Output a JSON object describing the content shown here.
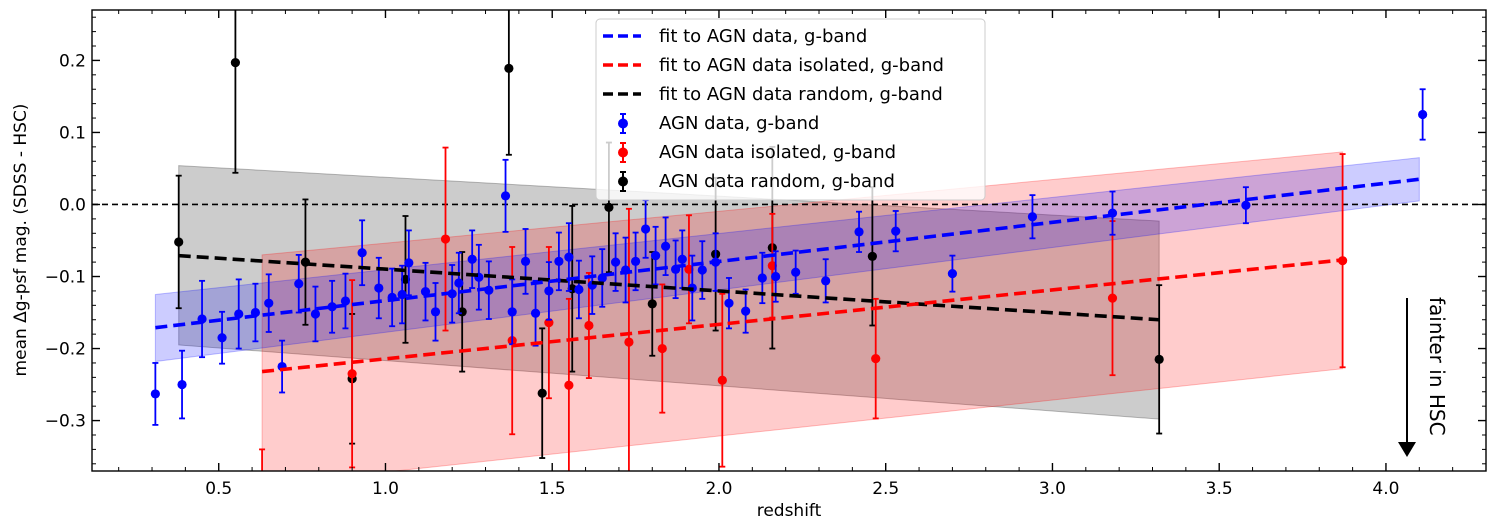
{
  "chart_data": {
    "type": "scatter",
    "title": "",
    "xlabel": "redshift",
    "ylabel": "mean Δg-psf mag. (SDSS - HSC)",
    "xlim": [
      0.12,
      4.3
    ],
    "ylim": [
      -0.37,
      0.27
    ],
    "xticks": [
      0.5,
      1.0,
      1.5,
      2.0,
      2.5,
      3.0,
      3.5,
      4.0
    ],
    "xtick_labels": [
      "0.5",
      "1.0",
      "1.5",
      "2.0",
      "2.5",
      "3.0",
      "3.5",
      "4.0"
    ],
    "yticks": [
      -0.3,
      -0.2,
      -0.1,
      0.0,
      0.1,
      0.2
    ],
    "ytick_labels": [
      "−0.3",
      "−0.2",
      "−0.1",
      "0.0",
      "0.1",
      "0.2"
    ],
    "reference_line_y": 0.0,
    "annotation": "fainter in HSC",
    "legend": [
      {
        "label": "fit to AGN data, g-band",
        "kind": "line",
        "color": "#0000ff"
      },
      {
        "label": "fit to AGN data isolated, g-band",
        "kind": "line",
        "color": "#ff0000"
      },
      {
        "label": "fit to AGN data random, g-band",
        "kind": "line",
        "color": "#000000"
      },
      {
        "label": "AGN data, g-band",
        "kind": "point",
        "color": "#0000ff"
      },
      {
        "label": "AGN data isolated, g-band",
        "kind": "point",
        "color": "#ff0000"
      },
      {
        "label": "AGN data random, g-band",
        "kind": "point",
        "color": "#000000"
      }
    ],
    "series": [
      {
        "name": "AGN data random, g-band",
        "color": "#000000",
        "band_color": "rgba(0,0,0,0.2)",
        "fit": {
          "x": [
            0.38,
            3.32
          ],
          "y": [
            -0.071,
            -0.16
          ]
        },
        "band": {
          "x": [
            0.38,
            3.32
          ],
          "upper": [
            0.054,
            -0.023
          ],
          "lower": [
            -0.195,
            -0.298
          ]
        },
        "points": [
          {
            "x": 0.38,
            "y": -0.052,
            "err": 0.092
          },
          {
            "x": 0.55,
            "y": 0.197,
            "err": 0.153
          },
          {
            "x": 0.76,
            "y": -0.08,
            "err": 0.087
          },
          {
            "x": 0.9,
            "y": -0.242,
            "err": 0.09
          },
          {
            "x": 1.06,
            "y": -0.104,
            "err": 0.088
          },
          {
            "x": 1.23,
            "y": -0.149,
            "err": 0.083
          },
          {
            "x": 1.37,
            "y": 0.189,
            "err": 0.12
          },
          {
            "x": 1.47,
            "y": -0.262,
            "err": 0.09
          },
          {
            "x": 1.56,
            "y": -0.117,
            "err": 0.115
          },
          {
            "x": 1.67,
            "y": -0.004,
            "err": 0.09
          },
          {
            "x": 1.8,
            "y": -0.138,
            "err": 0.072
          },
          {
            "x": 1.99,
            "y": -0.069,
            "err": 0.106
          },
          {
            "x": 2.16,
            "y": -0.06,
            "err": 0.14
          },
          {
            "x": 2.46,
            "y": -0.072,
            "err": 0.096
          },
          {
            "x": 3.32,
            "y": -0.215,
            "err": 0.103
          }
        ]
      },
      {
        "name": "AGN data isolated, g-band",
        "color": "#ff0000",
        "band_color": "rgba(255,0,0,0.2)",
        "fit": {
          "x": [
            0.63,
            3.87
          ],
          "y": [
            -0.232,
            -0.077
          ]
        },
        "band": {
          "x": [
            0.63,
            3.87
          ],
          "upper": [
            -0.07,
            0.073
          ],
          "lower": [
            -0.39,
            -0.228
          ]
        },
        "points": [
          {
            "x": 0.63,
            "y": -0.39,
            "err": 0.05
          },
          {
            "x": 0.9,
            "y": -0.235,
            "err": 0.13
          },
          {
            "x": 1.18,
            "y": -0.048,
            "err": 0.127
          },
          {
            "x": 1.38,
            "y": -0.189,
            "err": 0.13
          },
          {
            "x": 1.49,
            "y": -0.164,
            "err": 0.105
          },
          {
            "x": 1.55,
            "y": -0.251,
            "err": 0.12
          },
          {
            "x": 1.61,
            "y": -0.168,
            "err": 0.073
          },
          {
            "x": 1.73,
            "y": -0.191,
            "err": 0.185
          },
          {
            "x": 1.83,
            "y": -0.2,
            "err": 0.089
          },
          {
            "x": 1.91,
            "y": -0.09,
            "err": 0.075
          },
          {
            "x": 2.01,
            "y": -0.244,
            "err": 0.12
          },
          {
            "x": 2.16,
            "y": -0.085,
            "err": 0.072
          },
          {
            "x": 2.47,
            "y": -0.214,
            "err": 0.083
          },
          {
            "x": 3.18,
            "y": -0.13,
            "err": 0.107
          },
          {
            "x": 3.87,
            "y": -0.078,
            "err": 0.148
          }
        ]
      },
      {
        "name": "AGN data, g-band",
        "color": "#0000ff",
        "band_color": "rgba(0,0,255,0.2)",
        "fit": {
          "x": [
            0.31,
            4.1
          ],
          "y": [
            -0.171,
            0.035
          ]
        },
        "band": {
          "x": [
            0.31,
            4.1
          ],
          "upper": [
            -0.125,
            0.065
          ],
          "lower": [
            -0.218,
            0.005
          ]
        },
        "points": [
          {
            "x": 0.31,
            "y": -0.263,
            "err": 0.043
          },
          {
            "x": 0.39,
            "y": -0.25,
            "err": 0.047
          },
          {
            "x": 0.45,
            "y": -0.159,
            "err": 0.053
          },
          {
            "x": 0.51,
            "y": -0.185,
            "err": 0.036
          },
          {
            "x": 0.56,
            "y": -0.152,
            "err": 0.048
          },
          {
            "x": 0.61,
            "y": -0.15,
            "err": 0.04
          },
          {
            "x": 0.65,
            "y": -0.137,
            "err": 0.04
          },
          {
            "x": 0.69,
            "y": -0.225,
            "err": 0.036
          },
          {
            "x": 0.74,
            "y": -0.11,
            "err": 0.04
          },
          {
            "x": 0.79,
            "y": -0.152,
            "err": 0.038
          },
          {
            "x": 0.84,
            "y": -0.142,
            "err": 0.036
          },
          {
            "x": 0.88,
            "y": -0.134,
            "err": 0.038
          },
          {
            "x": 0.93,
            "y": -0.067,
            "err": 0.045
          },
          {
            "x": 0.98,
            "y": -0.116,
            "err": 0.042
          },
          {
            "x": 1.02,
            "y": -0.129,
            "err": 0.04
          },
          {
            "x": 1.05,
            "y": -0.125,
            "err": 0.04
          },
          {
            "x": 1.07,
            "y": -0.081,
            "err": 0.045
          },
          {
            "x": 1.12,
            "y": -0.121,
            "err": 0.04
          },
          {
            "x": 1.15,
            "y": -0.149,
            "err": 0.04
          },
          {
            "x": 1.2,
            "y": -0.124,
            "err": 0.04
          },
          {
            "x": 1.22,
            "y": -0.109,
            "err": 0.042
          },
          {
            "x": 1.26,
            "y": -0.076,
            "err": 0.04
          },
          {
            "x": 1.28,
            "y": -0.101,
            "err": 0.045
          },
          {
            "x": 1.31,
            "y": -0.119,
            "err": 0.04
          },
          {
            "x": 1.36,
            "y": 0.012,
            "err": 0.05
          },
          {
            "x": 1.38,
            "y": -0.149,
            "err": 0.045
          },
          {
            "x": 1.42,
            "y": -0.079,
            "err": 0.045
          },
          {
            "x": 1.45,
            "y": -0.151,
            "err": 0.045
          },
          {
            "x": 1.49,
            "y": -0.12,
            "err": 0.04
          },
          {
            "x": 1.52,
            "y": -0.079,
            "err": 0.04
          },
          {
            "x": 1.55,
            "y": -0.073,
            "err": 0.047
          },
          {
            "x": 1.58,
            "y": -0.118,
            "err": 0.04
          },
          {
            "x": 1.62,
            "y": -0.112,
            "err": 0.04
          },
          {
            "x": 1.65,
            "y": -0.102,
            "err": 0.04
          },
          {
            "x": 1.69,
            "y": -0.08,
            "err": 0.04
          },
          {
            "x": 1.72,
            "y": -0.091,
            "err": 0.045
          },
          {
            "x": 1.75,
            "y": -0.079,
            "err": 0.04
          },
          {
            "x": 1.78,
            "y": -0.034,
            "err": 0.04
          },
          {
            "x": 1.81,
            "y": -0.071,
            "err": 0.04
          },
          {
            "x": 1.84,
            "y": -0.058,
            "err": 0.04
          },
          {
            "x": 1.87,
            "y": -0.09,
            "err": 0.04
          },
          {
            "x": 1.89,
            "y": -0.076,
            "err": 0.04
          },
          {
            "x": 1.92,
            "y": -0.116,
            "err": 0.045
          },
          {
            "x": 1.95,
            "y": -0.091,
            "err": 0.04
          },
          {
            "x": 1.99,
            "y": -0.08,
            "err": 0.04
          },
          {
            "x": 2.03,
            "y": -0.137,
            "err": 0.035
          },
          {
            "x": 2.08,
            "y": -0.148,
            "err": 0.03
          },
          {
            "x": 2.13,
            "y": -0.102,
            "err": 0.035
          },
          {
            "x": 2.17,
            "y": -0.1,
            "err": 0.035
          },
          {
            "x": 2.23,
            "y": -0.094,
            "err": 0.03
          },
          {
            "x": 2.32,
            "y": -0.106,
            "err": 0.03
          },
          {
            "x": 2.42,
            "y": -0.038,
            "err": 0.028
          },
          {
            "x": 2.53,
            "y": -0.037,
            "err": 0.028
          },
          {
            "x": 2.7,
            "y": -0.096,
            "err": 0.025
          },
          {
            "x": 2.94,
            "y": -0.017,
            "err": 0.03
          },
          {
            "x": 3.18,
            "y": -0.012,
            "err": 0.03
          },
          {
            "x": 3.58,
            "y": -0.001,
            "err": 0.025
          },
          {
            "x": 4.11,
            "y": 0.125,
            "err": 0.035
          }
        ]
      }
    ]
  }
}
